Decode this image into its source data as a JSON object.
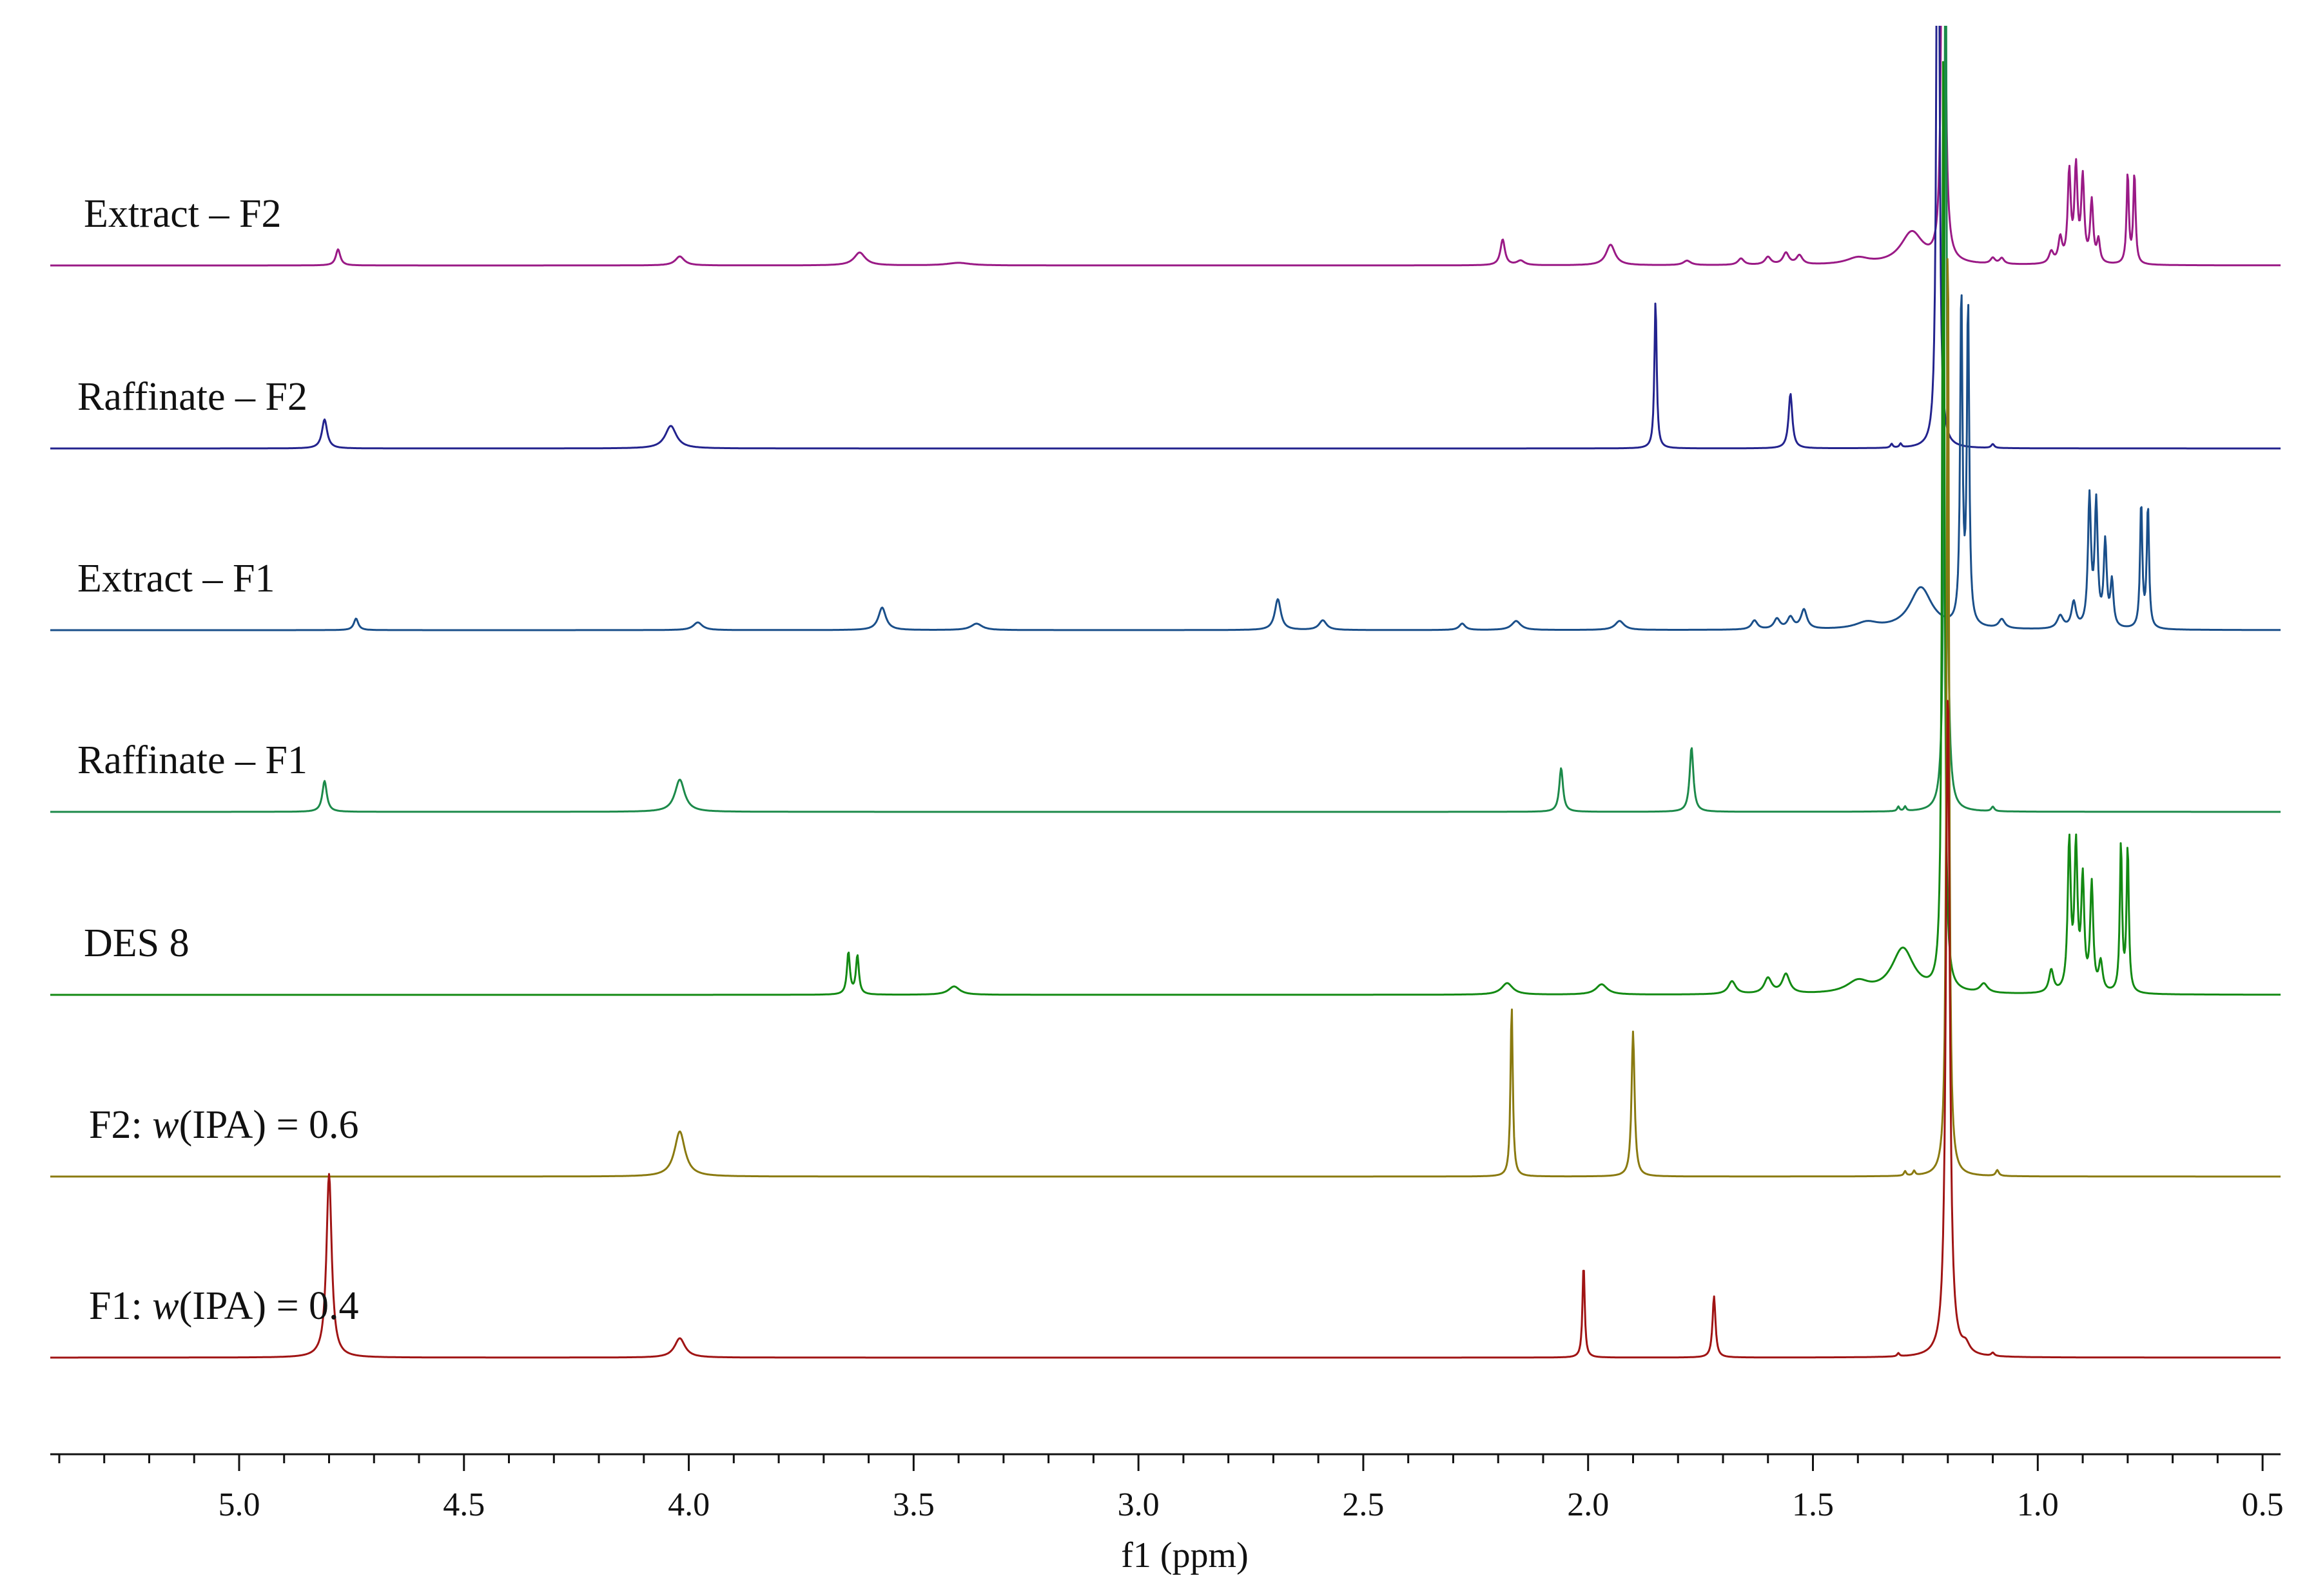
{
  "chart_data": {
    "type": "line",
    "xlabel": "f1 (ppm)",
    "xlim": [
      5.42,
      0.46
    ],
    "x_ticks": [
      "5.0",
      "4.5",
      "4.0",
      "3.5",
      "3.0",
      "2.5",
      "2.0",
      "1.5",
      "1.0",
      "0.5"
    ],
    "x_tick_values": [
      5.0,
      4.5,
      4.0,
      3.5,
      3.0,
      2.5,
      2.0,
      1.5,
      1.0,
      0.5
    ],
    "grid": false,
    "legend": "none",
    "series": [
      {
        "name": "Extract – F2",
        "label_parts": [
          "Extract – F2"
        ],
        "color": "#9a1a86",
        "peaks": [
          [
            4.78,
            25,
            0.006
          ],
          [
            4.02,
            14,
            0.012
          ],
          [
            3.62,
            20,
            0.015
          ],
          [
            3.4,
            4,
            0.03
          ],
          [
            2.19,
            40,
            0.006
          ],
          [
            2.15,
            7,
            0.01
          ],
          [
            1.95,
            32,
            0.012
          ],
          [
            1.78,
            7,
            0.01
          ],
          [
            1.66,
            10,
            0.008
          ],
          [
            1.6,
            12,
            0.008
          ],
          [
            1.56,
            18,
            0.008
          ],
          [
            1.53,
            14,
            0.008
          ],
          [
            1.4,
            10,
            0.03
          ],
          [
            1.28,
            50,
            0.03
          ],
          [
            1.21,
            1500,
            0.003
          ],
          [
            1.1,
            9,
            0.006
          ],
          [
            1.08,
            9,
            0.006
          ],
          [
            0.97,
            18,
            0.006
          ],
          [
            0.95,
            38,
            0.005
          ],
          [
            0.93,
            140,
            0.004
          ],
          [
            0.915,
            145,
            0.004
          ],
          [
            0.9,
            130,
            0.004
          ],
          [
            0.88,
            95,
            0.004
          ],
          [
            0.865,
            35,
            0.004
          ],
          [
            0.8,
            140,
            0.003
          ],
          [
            0.785,
            140,
            0.003
          ]
        ]
      },
      {
        "name": "Raffinate – F2",
        "label_parts": [
          "Raffinate – F2"
        ],
        "color": "#23238e",
        "peaks": [
          [
            4.81,
            45,
            0.007
          ],
          [
            4.04,
            35,
            0.015
          ],
          [
            1.85,
            230,
            0.003
          ],
          [
            1.55,
            85,
            0.005
          ],
          [
            1.325,
            6,
            0.003
          ],
          [
            1.305,
            6,
            0.003
          ],
          [
            1.222,
            1500,
            0.003
          ],
          [
            1.1,
            6,
            0.004
          ]
        ]
      },
      {
        "name": "Extract – F1",
        "label_parts": [
          "Extract – F1"
        ],
        "color": "#1a4f8a",
        "peaks": [
          [
            4.74,
            18,
            0.006
          ],
          [
            3.98,
            12,
            0.012
          ],
          [
            3.57,
            35,
            0.01
          ],
          [
            3.36,
            10,
            0.015
          ],
          [
            2.69,
            48,
            0.008
          ],
          [
            2.59,
            15,
            0.01
          ],
          [
            2.28,
            10,
            0.008
          ],
          [
            2.16,
            14,
            0.012
          ],
          [
            1.93,
            14,
            0.012
          ],
          [
            1.63,
            14,
            0.008
          ],
          [
            1.58,
            16,
            0.008
          ],
          [
            1.55,
            18,
            0.008
          ],
          [
            1.52,
            30,
            0.008
          ],
          [
            1.38,
            10,
            0.03
          ],
          [
            1.26,
            65,
            0.03
          ],
          [
            1.17,
            520,
            0.003
          ],
          [
            1.155,
            500,
            0.003
          ],
          [
            1.08,
            14,
            0.008
          ],
          [
            0.95,
            20,
            0.008
          ],
          [
            0.92,
            40,
            0.006
          ],
          [
            0.885,
            200,
            0.004
          ],
          [
            0.87,
            190,
            0.004
          ],
          [
            0.85,
            130,
            0.004
          ],
          [
            0.835,
            70,
            0.004
          ],
          [
            0.77,
            195,
            0.003
          ],
          [
            0.755,
            190,
            0.003
          ]
        ]
      },
      {
        "name": "Raffinate – F1",
        "label_parts": [
          "Raffinate – F1"
        ],
        "color": "#1c8a4a",
        "peaks": [
          [
            4.81,
            48,
            0.006
          ],
          [
            4.02,
            50,
            0.013
          ],
          [
            2.06,
            68,
            0.005
          ],
          [
            1.77,
            100,
            0.005
          ],
          [
            1.31,
            7,
            0.003
          ],
          [
            1.295,
            7,
            0.003
          ],
          [
            1.205,
            1500,
            0.003
          ],
          [
            1.1,
            7,
            0.004
          ]
        ]
      },
      {
        "name": "DES 8",
        "label_parts": [
          "DES 8"
        ],
        "color": "#138a13",
        "peaks": [
          [
            3.645,
            65,
            0.004
          ],
          [
            3.625,
            60,
            0.004
          ],
          [
            3.41,
            13,
            0.015
          ],
          [
            2.18,
            18,
            0.015
          ],
          [
            1.97,
            16,
            0.015
          ],
          [
            1.68,
            20,
            0.01
          ],
          [
            1.6,
            24,
            0.01
          ],
          [
            1.56,
            30,
            0.01
          ],
          [
            1.4,
            18,
            0.03
          ],
          [
            1.3,
            70,
            0.03
          ],
          [
            1.21,
            1500,
            0.003
          ],
          [
            1.12,
            14,
            0.01
          ],
          [
            0.97,
            35,
            0.006
          ],
          [
            0.93,
            230,
            0.004
          ],
          [
            0.915,
            220,
            0.004
          ],
          [
            0.9,
            170,
            0.004
          ],
          [
            0.88,
            165,
            0.004
          ],
          [
            0.86,
            45,
            0.005
          ],
          [
            0.815,
            230,
            0.003
          ],
          [
            0.8,
            225,
            0.003
          ]
        ]
      },
      {
        "name": "F2: w(IPA) = 0.6",
        "label_parts": [
          "F2: ",
          "w",
          "(IPA) = 0.6"
        ],
        "color": "#8a7a10",
        "peaks": [
          [
            4.02,
            70,
            0.014
          ],
          [
            2.17,
            265,
            0.003
          ],
          [
            1.9,
            225,
            0.004
          ],
          [
            1.295,
            7,
            0.003
          ],
          [
            1.275,
            7,
            0.003
          ],
          [
            1.2,
            1500,
            0.003
          ],
          [
            1.09,
            9,
            0.004
          ]
        ]
      },
      {
        "name": "F1: w(IPA) = 0.4",
        "label_parts": [
          "F1: ",
          "w",
          "(IPA) = 0.4"
        ],
        "color": "#a01414",
        "peaks": [
          [
            4.8,
            285,
            0.007
          ],
          [
            4.02,
            30,
            0.014
          ],
          [
            2.01,
            145,
            0.003
          ],
          [
            1.72,
            95,
            0.004
          ],
          [
            1.31,
            5,
            0.003
          ],
          [
            1.2,
            1038,
            0.005
          ],
          [
            1.16,
            14,
            0.01
          ],
          [
            1.1,
            5,
            0.004
          ]
        ]
      }
    ]
  }
}
